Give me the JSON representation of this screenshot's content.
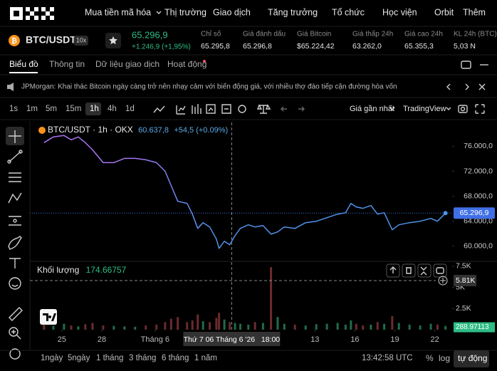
{
  "nav": {
    "items": [
      "Mua tiền mã hóa",
      "Thị trường",
      "Giao dịch",
      "Tăng trưởng",
      "Tổ chức",
      "Học viện",
      "Orbit",
      "Thêm"
    ]
  },
  "ticker": {
    "pair": "BTC/USDT",
    "leverage": "10x",
    "price": "65.296,9",
    "change": "+1.246,9 (+1,95%)",
    "stats": [
      {
        "label": "Chỉ số",
        "value": "65.295,8"
      },
      {
        "label": "Giá đánh dấu",
        "value": "65.296,8"
      },
      {
        "label": "Giá Bitcoin",
        "value": "$65.224,42"
      },
      {
        "label": "Giá thấp 24h",
        "value": "63.262,0"
      },
      {
        "label": "Giá cao 24h",
        "value": "65.355,3"
      },
      {
        "label": "KL 24h (BTC)",
        "value": "5,03 N"
      }
    ]
  },
  "tabs": [
    "Biểu đồ",
    "Thông tin",
    "Dữ liệu giao dịch",
    "Hoạt động"
  ],
  "news": "JPMorgan: Khai thác Bitcoin ngày càng trở nên nhạy cảm với biến động giá, với nhiều thợ đào tiếp cận đường hòa vốn",
  "intervals": [
    "1s",
    "1m",
    "5m",
    "15m",
    "1h",
    "4h",
    "1d"
  ],
  "price_source": "Giá gần nhất",
  "chart_view": "TradingView",
  "ranges": [
    "1ngày",
    "5ngày",
    "1 tháng",
    "3 tháng",
    "6 tháng",
    "1 năm"
  ],
  "clock": "13:42:58 UTC",
  "scale_buttons": [
    "%",
    "log",
    "tự động"
  ],
  "crosshair": {
    "x": 37.75,
    "time": "Thứ 7 06 Tháng 6 '26   18:00",
    "volume": 5810,
    "volume_label": "5.81K"
  },
  "chart_data": [
    {
      "type": "line",
      "title": "BTC/USDT · 1h · OKX",
      "last": "60.637,8",
      "last_change": "+54,5 (+0.09%)",
      "x": [
        23.66,
        24.36,
        25.16,
        25.7,
        26.23,
        26.76,
        27.3,
        28.1,
        28.9,
        29.7,
        30.5,
        31.3,
        32.1,
        32.75,
        33.2,
        33.7,
        34.4,
        34.8,
        35.2,
        35.6,
        36.1,
        36.6,
        36.8,
        37.2,
        37.6,
        38.0,
        38.4,
        39.0,
        39.5,
        40.1,
        40.7,
        41.2,
        41.7,
        42.5,
        43.3,
        44.1,
        44.9,
        45.7,
        46.3,
        46.7,
        47.1,
        47.6,
        48.2,
        48.7,
        49.2,
        49.8,
        50.3,
        51.1,
        51.9,
        52.7,
        53.2,
        53.8
      ],
      "values": [
        76571,
        77486,
        77714,
        77029,
        77486,
        76571,
        75429,
        73371,
        73371,
        74057,
        74057,
        73829,
        73371,
        72000,
        69714,
        67200,
        66857,
        65143,
        62857,
        63771,
        63086,
        61143,
        59657,
        60800,
        60229,
        61714,
        62857,
        63429,
        63086,
        63314,
        61943,
        62286,
        63086,
        62857,
        63771,
        64000,
        64571,
        65143,
        65371,
        66857,
        66286,
        66057,
        66514,
        65143,
        65371,
        62629,
        63429,
        63771,
        64000,
        64457,
        64000,
        65297
      ],
      "colors": [
        "#a774f2",
        "#4f93ea"
      ],
      "current_price": 65296.9,
      "current_price_label": "65.296,9",
      "current_color": "#3f6fe6",
      "xlim": [
        22.6,
        54.3
      ],
      "xticks": [
        25,
        28,
        {
          "value": 32,
          "label": "Tháng 6"
        },
        {
          "value": 44,
          "label": "13"
        },
        {
          "value": 47,
          "label": "16"
        },
        {
          "value": 50,
          "label": "19"
        },
        {
          "value": 53,
          "label": "22"
        }
      ],
      "ylim": [
        57700,
        79800
      ],
      "yticks": [
        {
          "value": 60000,
          "label": "60.000,0"
        },
        {
          "value": 64000,
          "label": "64.000,0"
        },
        {
          "value": 68000,
          "label": "68.000,0"
        },
        {
          "value": 72000,
          "label": "72.000,0"
        },
        {
          "value": 76000,
          "label": "76.000,0"
        }
      ]
    },
    {
      "type": "bar",
      "title": "Khối lượng",
      "last": 174.66757,
      "x": [
        23.66,
        24.36,
        25.16,
        25.7,
        26.23,
        26.76,
        27.3,
        28.1,
        28.9,
        29.7,
        30.5,
        31.3,
        32.1,
        32.75,
        33.2,
        33.7,
        34.4,
        34.8,
        35.2,
        35.6,
        36.1,
        36.6,
        36.8,
        37.2,
        37.6,
        38.0,
        38.4,
        39.0,
        39.5,
        40.1,
        40.7,
        41.2,
        41.7,
        42.5,
        43.3,
        44.1,
        44.9,
        45.7,
        46.3,
        46.7,
        47.1,
        47.6,
        48.2,
        48.7,
        49.2,
        49.8,
        50.3,
        51.1,
        51.9,
        52.7,
        53.2,
        53.8
      ],
      "values": [
        600,
        450,
        700,
        500,
        400,
        650,
        800,
        500,
        450,
        400,
        350,
        500,
        600,
        900,
        1300,
        1500,
        900,
        1100,
        1800,
        1000,
        900,
        1400,
        2000,
        1200,
        900,
        800,
        700,
        600,
        900,
        800,
        7400,
        1500,
        700,
        600,
        500,
        650,
        700,
        800,
        600,
        1100,
        700,
        500,
        600,
        900,
        700,
        1600,
        800,
        600,
        500,
        700,
        600,
        450
      ],
      "up_color": "#1f6b4a",
      "down_color": "#6b2b2e",
      "current_value": 288.97113,
      "current_color": "#2ebd85",
      "xlim": [
        22.6,
        54.3
      ],
      "ylim": [
        0,
        8000
      ],
      "yticks": [
        {
          "value": 2500,
          "label": "2.5K"
        },
        {
          "value": 5000,
          "label": "5K"
        },
        {
          "value": 7500,
          "label": "7.5K"
        }
      ]
    }
  ]
}
